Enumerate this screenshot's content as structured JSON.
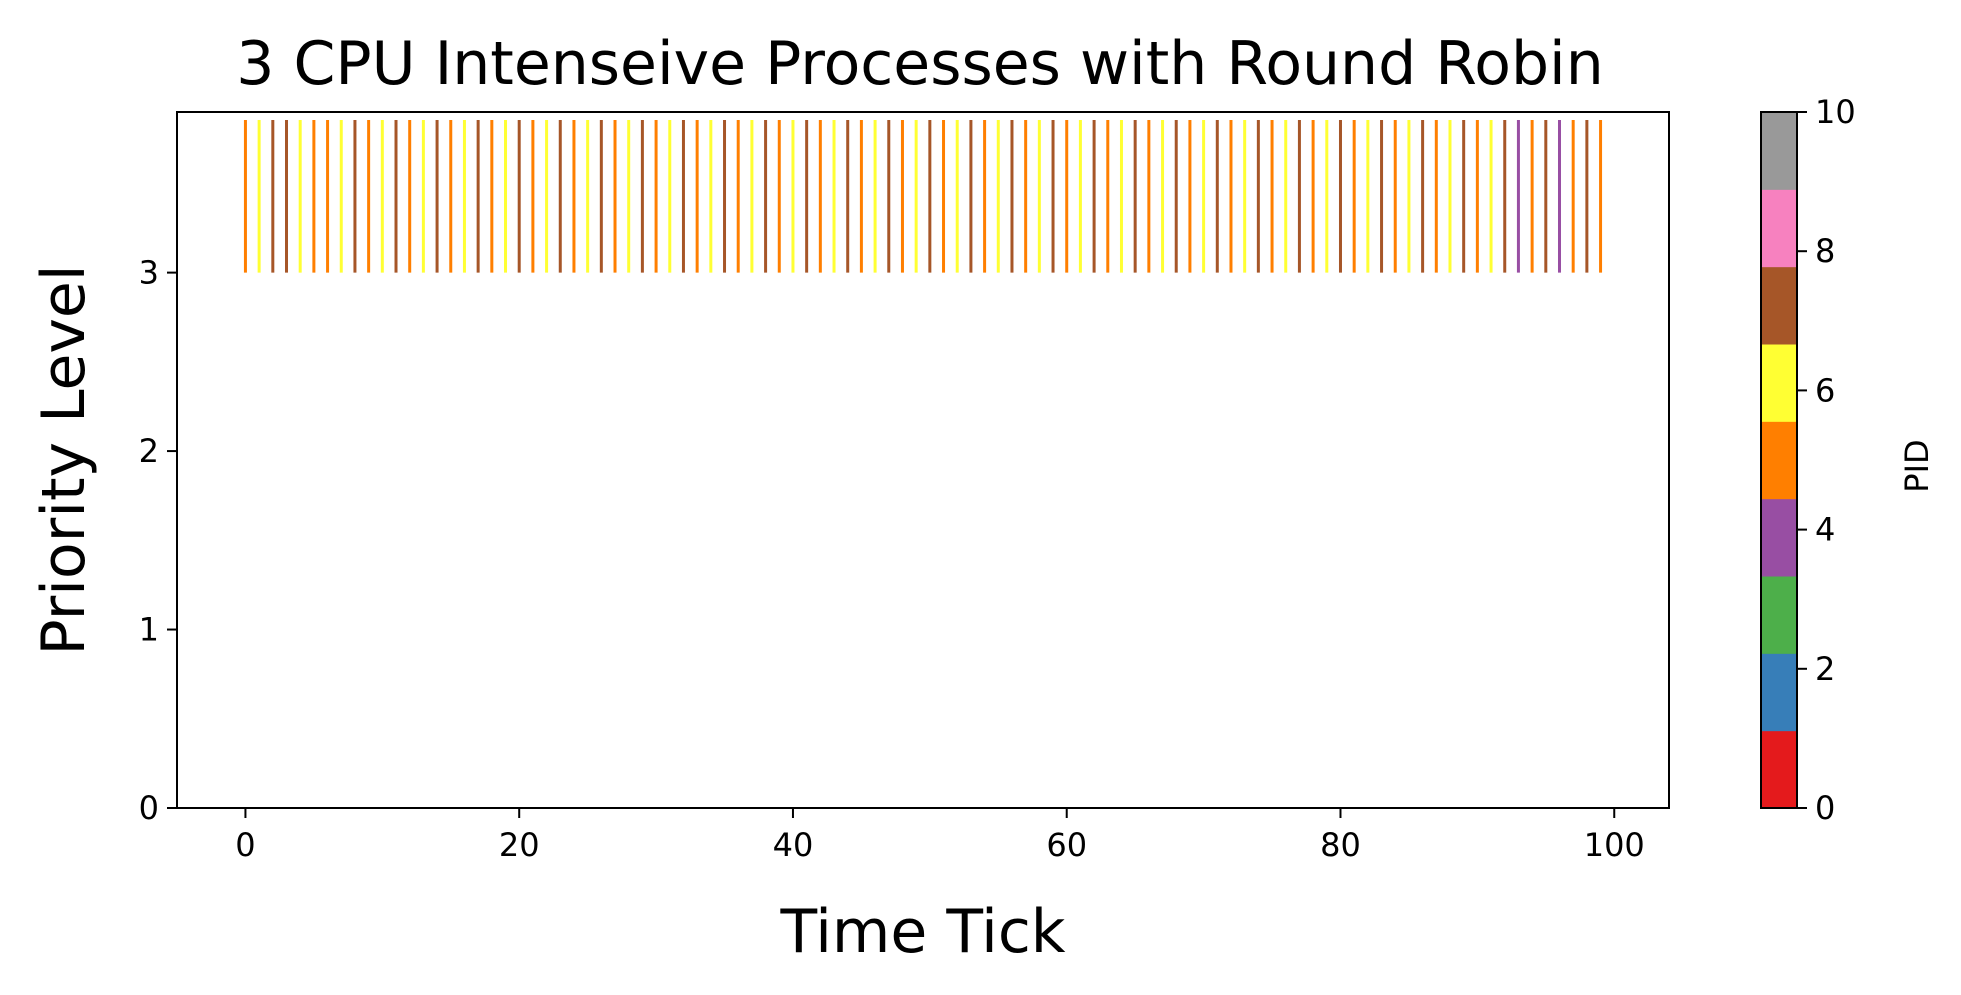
{
  "chart_data": {
    "type": "event_plot",
    "title": "3 CPU Intenseive Processes with Round Robin",
    "xlabel": "Time Tick",
    "ylabel": "Priority Level",
    "xlim": [
      -5,
      104
    ],
    "ylim": [
      0,
      3.9
    ],
    "xticks": [
      0,
      20,
      40,
      60,
      80,
      100
    ],
    "yticks": [
      0,
      1,
      2,
      3
    ],
    "grid": false,
    "colorbar": {
      "label": "PID",
      "range": [
        0,
        10
      ],
      "ticks": [
        0,
        2,
        4,
        6,
        8,
        10
      ],
      "colors": [
        "#e41a1c",
        "#377eb8",
        "#4daf4a",
        "#984ea3",
        "#ff7f00",
        "#ffff33",
        "#a65628",
        "#f781bf",
        "#999999"
      ]
    },
    "events": {
      "priority": 3,
      "bar_top": 3.9,
      "ticks": [
        0,
        1,
        2,
        3,
        4,
        5,
        6,
        7,
        8,
        9,
        10,
        11,
        12,
        13,
        14,
        15,
        16,
        17,
        18,
        19,
        20,
        21,
        22,
        23,
        24,
        25,
        26,
        27,
        28,
        29,
        30,
        31,
        32,
        33,
        34,
        35,
        36,
        37,
        38,
        39,
        40,
        41,
        42,
        43,
        44,
        45,
        46,
        47,
        48,
        49,
        50,
        51,
        52,
        53,
        54,
        55,
        56,
        57,
        58,
        59,
        60,
        61,
        62,
        63,
        64,
        65,
        66,
        67,
        68,
        69,
        70,
        71,
        72,
        73,
        74,
        75,
        76,
        77,
        78,
        79,
        80,
        81,
        82,
        83,
        84,
        85,
        86,
        87,
        88,
        89,
        90,
        91,
        92,
        93,
        94,
        95,
        96,
        97,
        98,
        99
      ],
      "pid": [
        5,
        6,
        7,
        7,
        6,
        5,
        5,
        6,
        7,
        5,
        6,
        7,
        5,
        6,
        7,
        5,
        6,
        7,
        5,
        6,
        7,
        5,
        6,
        7,
        5,
        6,
        7,
        5,
        6,
        7,
        5,
        6,
        7,
        5,
        6,
        7,
        5,
        6,
        7,
        5,
        6,
        7,
        5,
        6,
        7,
        5,
        6,
        7,
        5,
        6,
        7,
        5,
        6,
        7,
        5,
        6,
        7,
        5,
        6,
        7,
        5,
        6,
        7,
        5,
        6,
        7,
        5,
        6,
        7,
        5,
        6,
        7,
        5,
        6,
        7,
        5,
        6,
        7,
        5,
        6,
        7,
        5,
        6,
        7,
        5,
        6,
        7,
        5,
        6,
        7,
        5,
        6,
        7,
        4,
        5,
        7,
        4,
        5,
        7,
        5
      ]
    }
  }
}
